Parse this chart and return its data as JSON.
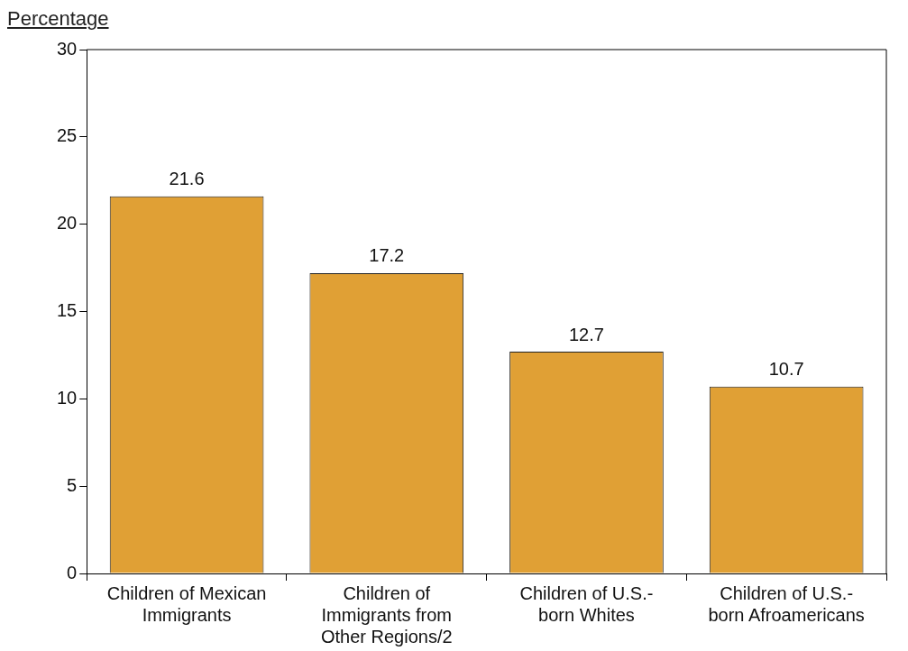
{
  "chart_data": {
    "type": "bar",
    "ylabel": "Percentage",
    "categories": [
      "Children of Mexican Immigrants",
      "Children of Immigrants from Other Regions/2",
      "Children of U.S.-born Whites",
      "Children of U.S.-born Afroamericans"
    ],
    "values": [
      21.6,
      17.2,
      12.7,
      10.7
    ],
    "color": "#e0a035",
    "ylim": [
      0,
      30
    ],
    "yticks": [
      0,
      5,
      10,
      15,
      20,
      25,
      30
    ],
    "grid": false,
    "legend": false,
    "data_labels": true
  }
}
